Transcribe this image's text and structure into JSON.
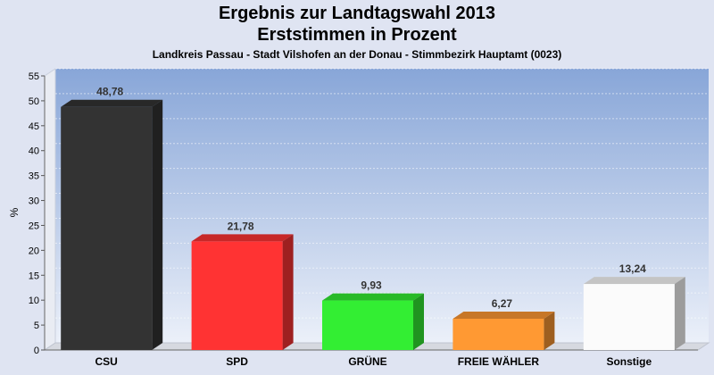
{
  "chart_data": {
    "type": "bar",
    "title": "Ergebnis zur Landtagswahl 2013",
    "title_line2": "Erststimmen in Prozent",
    "subtitle": "Landkreis Passau - Stadt Vilshofen an der Donau - Stimmbezirk Hauptamt (0023)",
    "xlabel": "",
    "ylabel": "%",
    "ylim": [
      0,
      55
    ],
    "yticks": [
      0,
      5,
      10,
      15,
      20,
      25,
      30,
      35,
      40,
      45,
      50,
      55
    ],
    "grid": true,
    "categories": [
      "CSU",
      "SPD",
      "GRÜNE",
      "FREIE WÄHLER",
      "Sonstige"
    ],
    "values": [
      48.78,
      21.78,
      9.93,
      6.27,
      13.24
    ],
    "value_labels": [
      "48,78",
      "21,78",
      "9,93",
      "6,27",
      "13,24"
    ],
    "colors": [
      "#333333",
      "#ff3333",
      "#33ee33",
      "#ff9933",
      "#fbfbfb"
    ]
  }
}
